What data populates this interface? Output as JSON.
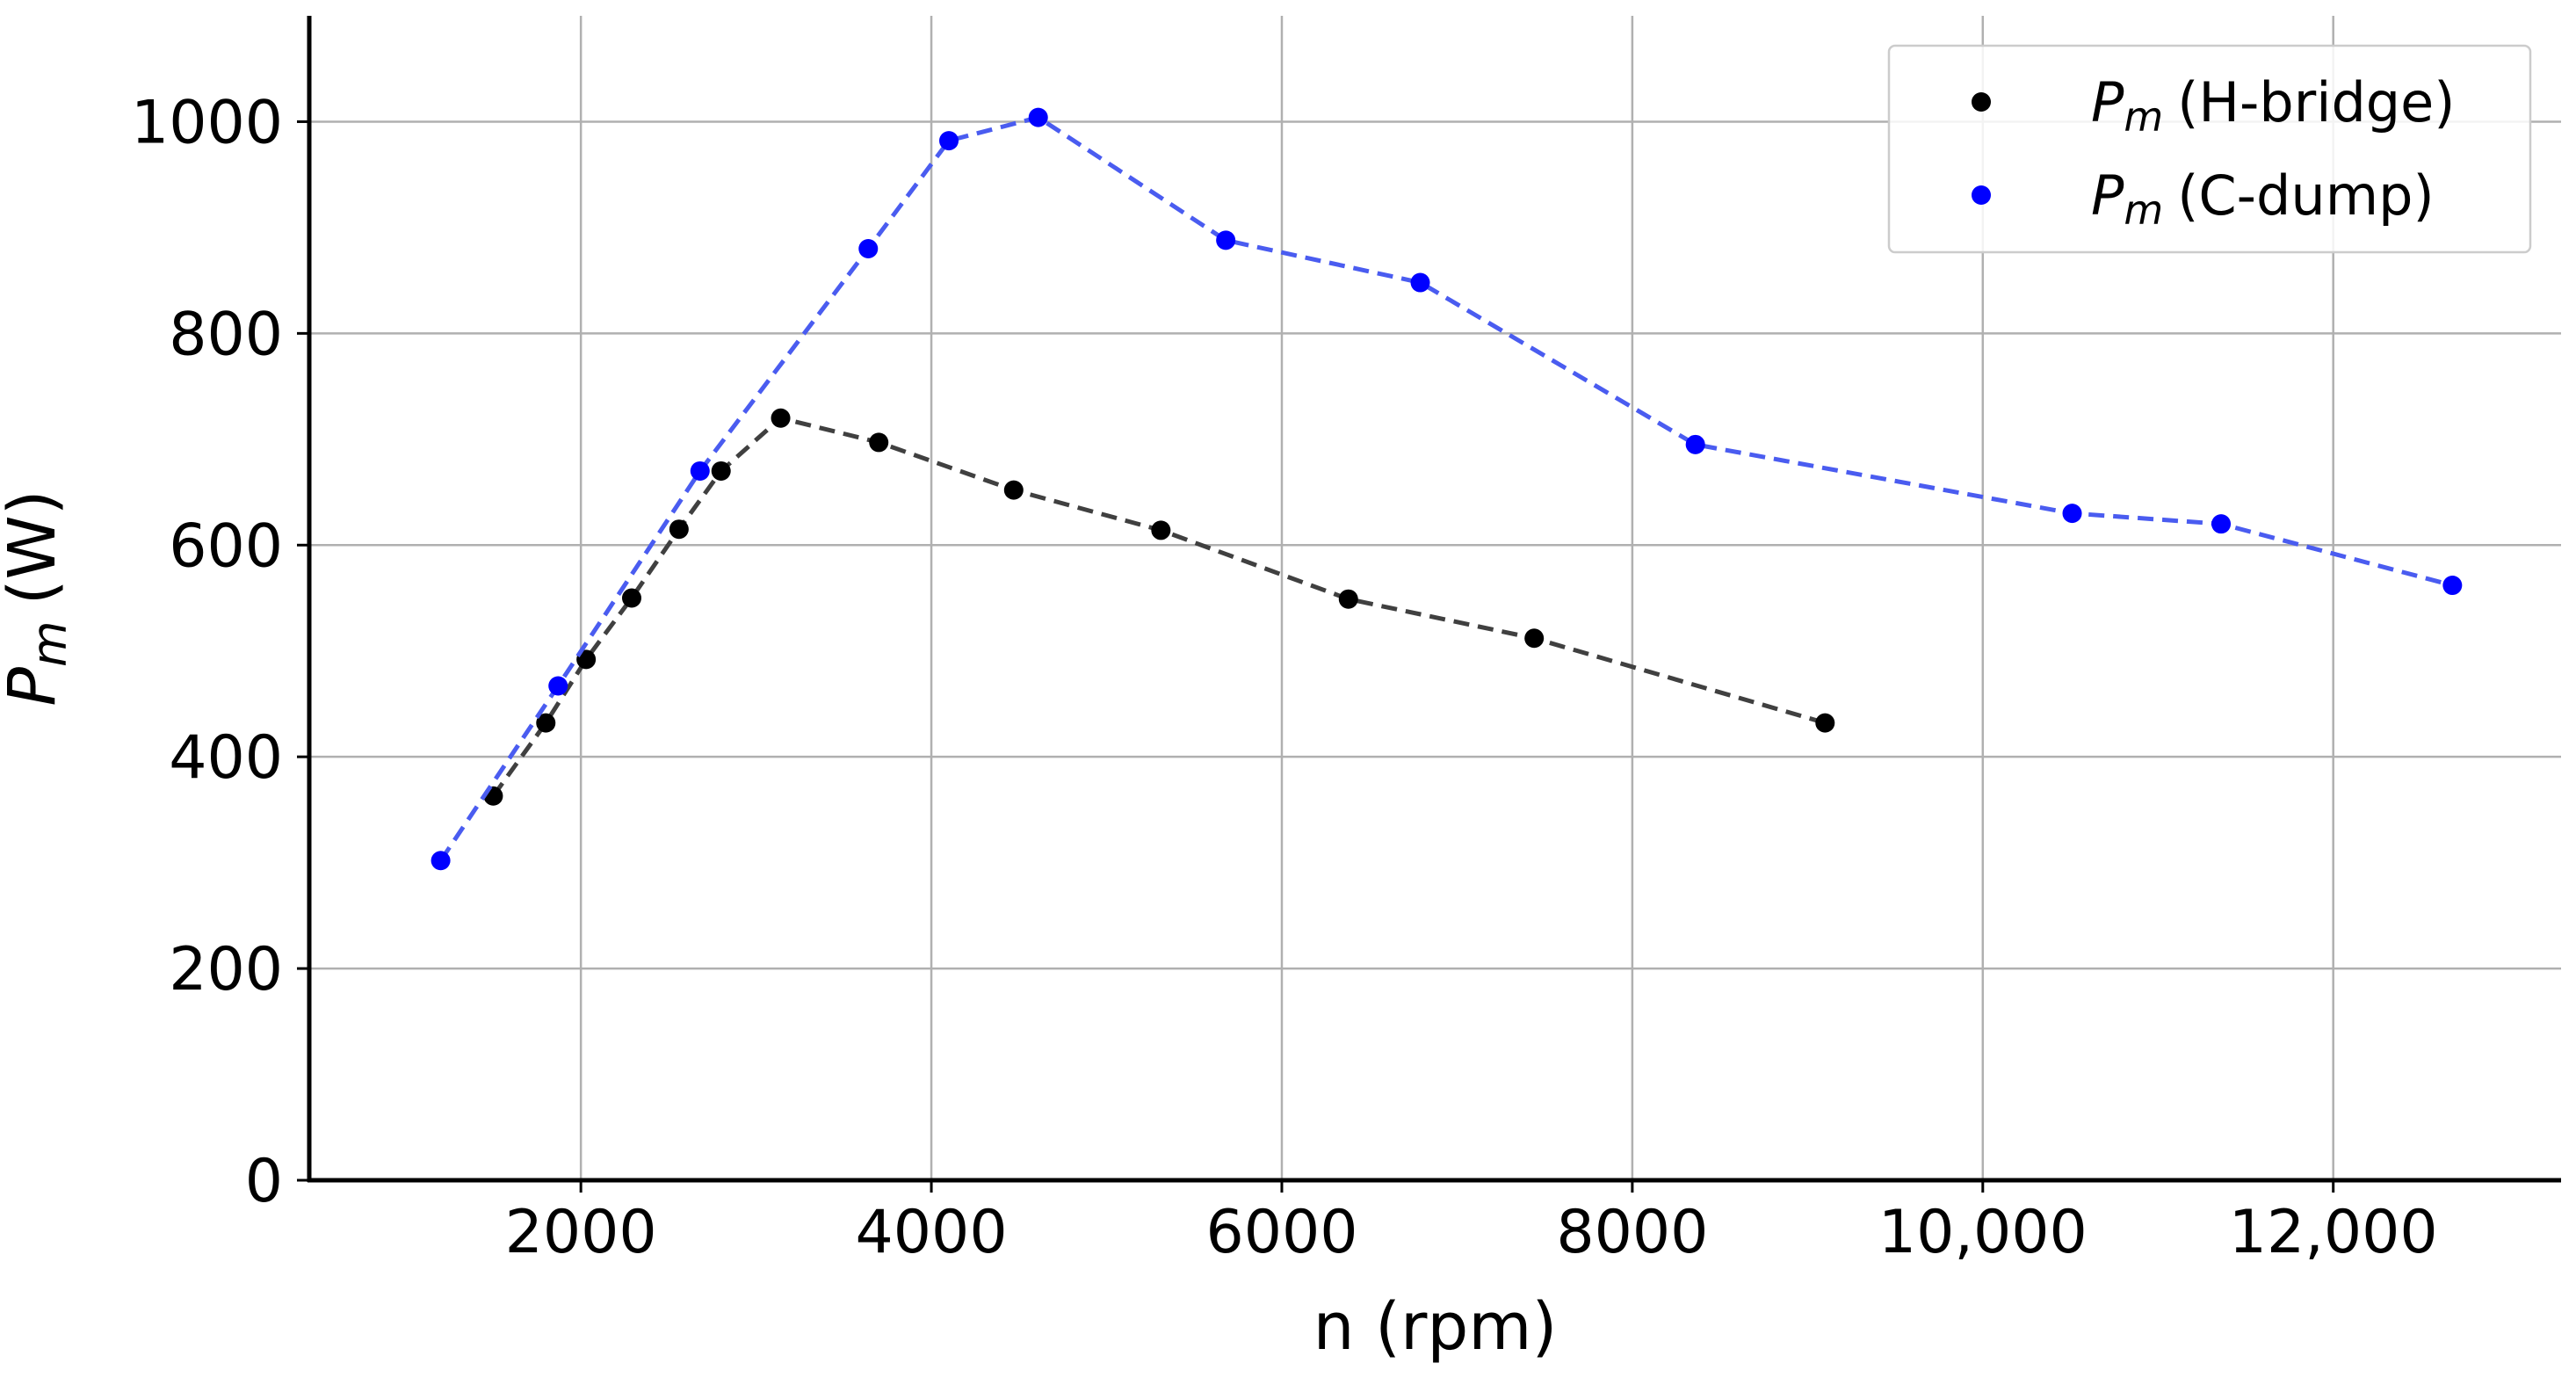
{
  "chart_data": {
    "type": "line",
    "xlabel": "n (rpm)",
    "ylabel": {
      "symbol": "P",
      "subscript": "m",
      "unit": "(W)"
    },
    "xlim": [
      450,
      13300
    ],
    "ylim": [
      0,
      1100
    ],
    "xticks": [
      {
        "value": 2000,
        "label": "2000"
      },
      {
        "value": 4000,
        "label": "4000"
      },
      {
        "value": 6000,
        "label": "6000"
      },
      {
        "value": 8000,
        "label": "8000"
      },
      {
        "value": 10000,
        "label": "10,000"
      },
      {
        "value": 12000,
        "label": "12,000"
      }
    ],
    "yticks": [
      {
        "value": 0,
        "label": "0"
      },
      {
        "value": 200,
        "label": "200"
      },
      {
        "value": 400,
        "label": "400"
      },
      {
        "value": 600,
        "label": "600"
      },
      {
        "value": 800,
        "label": "800"
      },
      {
        "value": 1000,
        "label": "1000"
      }
    ],
    "grid": true,
    "legend_position": "top-right",
    "series": [
      {
        "id": "h-bridge",
        "name": "P_m (H-bridge)",
        "legend": {
          "symbol": "P",
          "subscript": "m",
          "suffix": "(H-bridge)"
        },
        "color": "#000000",
        "line_color": "#404040",
        "x": [
          1500,
          1800,
          2030,
          2290,
          2560,
          2800,
          3140,
          3700,
          4470,
          5310,
          6380,
          7440,
          9100
        ],
        "y": [
          363,
          432,
          492,
          550,
          615,
          670,
          720,
          697,
          652,
          614,
          549,
          512,
          432
        ]
      },
      {
        "id": "c-dump",
        "name": "P_m (C-dump)",
        "legend": {
          "symbol": "P",
          "subscript": "m",
          "suffix": "(C-dump)"
        },
        "color": "#0000ff",
        "line_color": "#4a5cf0",
        "x": [
          1200,
          1870,
          2680,
          3640,
          4100,
          4610,
          5680,
          6790,
          8360,
          10510,
          11360,
          12680
        ],
        "y": [
          302,
          467,
          670,
          880,
          982,
          1004,
          888,
          848,
          695,
          630,
          620,
          562
        ]
      }
    ]
  }
}
